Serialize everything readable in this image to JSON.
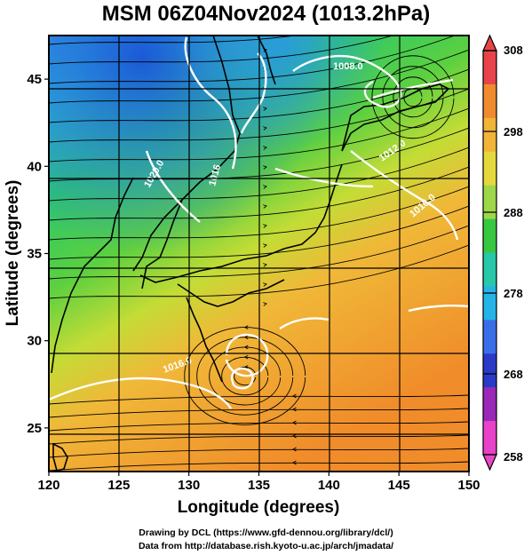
{
  "title": "MSM 06Z04Nov2024 (1013.2hPa)",
  "x_axis": {
    "label": "Longitude (degrees)",
    "ticks": [
      "120",
      "125",
      "130",
      "135",
      "140",
      "145",
      "150"
    ],
    "range": [
      120,
      150
    ]
  },
  "y_axis": {
    "label": "Latitude  (degrees)",
    "ticks": [
      "25",
      "30",
      "35",
      "40",
      "45"
    ],
    "range": [
      22.5,
      47.5
    ]
  },
  "colorbar": {
    "ticks": [
      "308",
      "298",
      "288",
      "278",
      "268",
      "258"
    ],
    "range": [
      258,
      308
    ],
    "colors_top_to_bottom": [
      "#e8434a",
      "#f08a2f",
      "#f2b438",
      "#e4d83c",
      "#9ed84a",
      "#38c840",
      "#26c8a8",
      "#26b4e8",
      "#3a6ee8",
      "#2a3ac8",
      "#9a28b8",
      "#e842c8"
    ]
  },
  "isobars": [
    {
      "label": "1008.0"
    },
    {
      "label": "1012.0"
    },
    {
      "label": "1016.0"
    },
    {
      "label": "1016"
    },
    {
      "label": "1020.0"
    },
    {
      "label": "1016.0"
    }
  ],
  "footer": {
    "credit_line1": "Drawing by DCL (https://www.gfd-dennou.org/library/dcl/)",
    "credit_line2": "Data from http://database.rish.kyoto-u.ac.jp/arch/jmadata/"
  }
}
